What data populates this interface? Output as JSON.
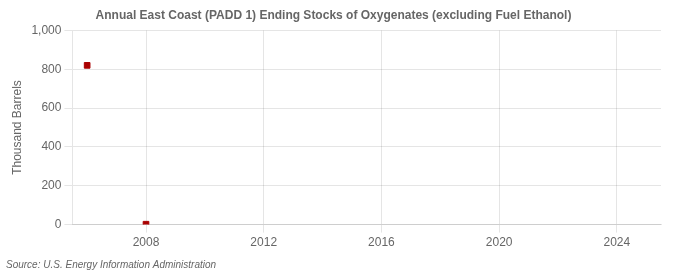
{
  "chart_data": {
    "type": "scatter",
    "title": "Annual East Coast (PADD 1) Ending Stocks of Oxygenates (excluding Fuel Ethanol)",
    "ylabel": "Thousand Barrels",
    "annotations": [
      "Source: U.S. Energy Information Administration"
    ],
    "x": [
      2006,
      2008
    ],
    "values": [
      820,
      2
    ],
    "color": "#aa0000",
    "marker": "square",
    "xlim": [
      2005.5,
      2025.5
    ],
    "ylim": [
      0,
      1000
    ],
    "xticks": [
      2008,
      2012,
      2016,
      2020,
      2024
    ],
    "yticks": [
      0,
      200,
      400,
      600,
      800,
      {
        "value": 1000,
        "label": "1,000"
      }
    ],
    "grid": true
  }
}
